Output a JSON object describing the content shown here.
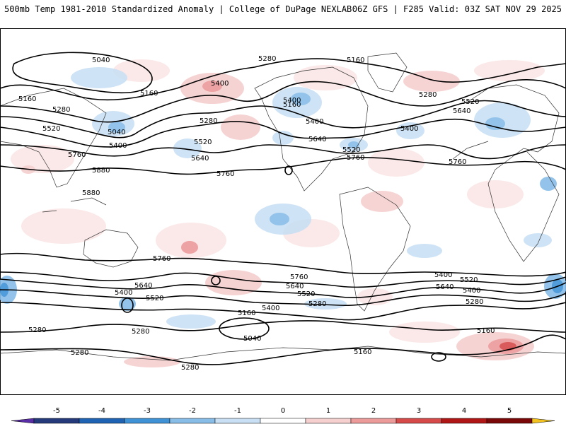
{
  "header": {
    "left": "500mb Temp 1981-2010 Standardized Anomaly | College of DuPage NEXLAB",
    "right": "06Z GFS | F285 Valid: 03Z SAT NOV 29 2025"
  },
  "colorbar": {
    "ticks": [
      "-5",
      "-4",
      "-3",
      "-2",
      "-1",
      "0",
      "1",
      "2",
      "3",
      "4",
      "5"
    ],
    "colors": [
      "#5a2ea6",
      "#243a7a",
      "#1f64b4",
      "#3f92d6",
      "#88bde8",
      "#c9e0f4",
      "#ffffff",
      "#f6cfcf",
      "#ec9a9a",
      "#d64a4a",
      "#b01616",
      "#7a0808",
      "#f2c320"
    ]
  },
  "contour_labels": {
    "c1": "5040",
    "c2": "5280",
    "c3": "5160",
    "c4": "5160",
    "c5": "5400",
    "c6": "5160",
    "c7": "5280",
    "c8": "5520",
    "c9": "5040",
    "c10": "5400",
    "c11": "5280",
    "c12": "5760",
    "c13": "5520",
    "c14": "5640",
    "c15": "5880",
    "c16": "5880",
    "c17": "5760",
    "c18": "5400",
    "c19": "5640",
    "c20": "5520",
    "c21": "5760",
    "c22": "5400",
    "c23": "5280",
    "c24": "5520",
    "c25": "5640",
    "c26": "5400",
    "c27": "5760",
    "c28": "5760",
    "c29": "5640",
    "c30": "5400",
    "c31": "5520",
    "c32": "5760",
    "c33": "5520",
    "c34": "5640",
    "c35": "5400",
    "c36": "5280",
    "c37": "5400",
    "c38": "5520",
    "c39": "5640",
    "c40": "5400",
    "c41": "5280",
    "c42": "5160",
    "c43": "5040",
    "c44": "5280",
    "c45": "5280",
    "c46": "5280",
    "c47": "5160",
    "c48": "5280",
    "c49": "5160",
    "c50": "5160"
  }
}
